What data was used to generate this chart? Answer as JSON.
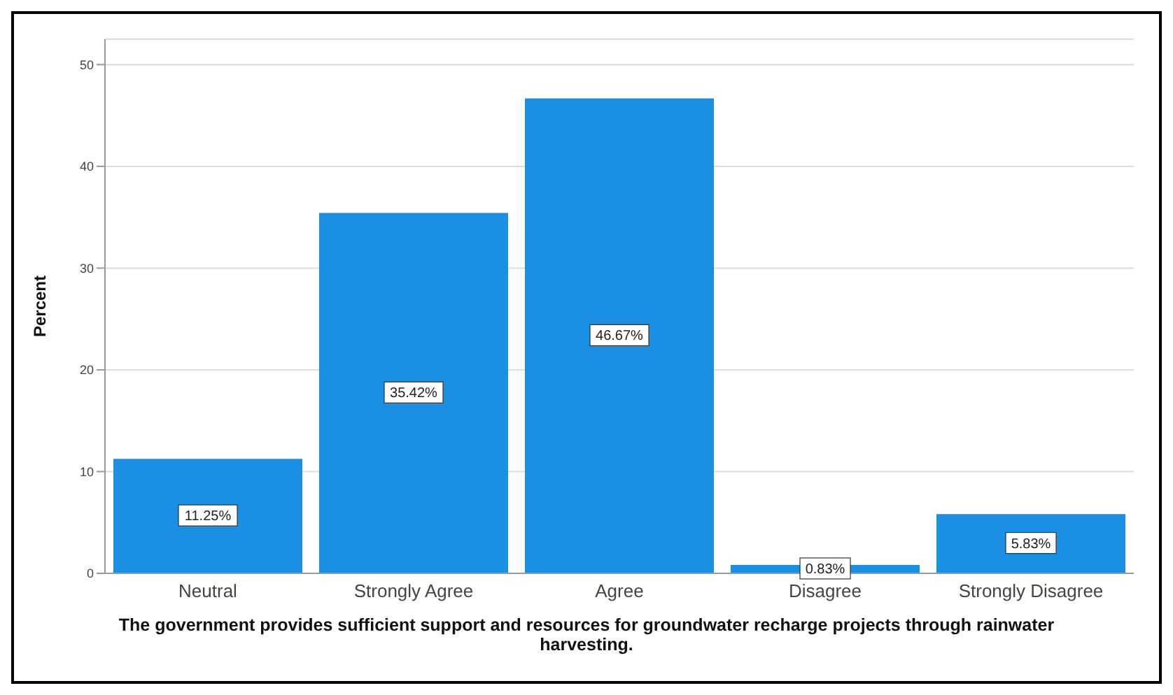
{
  "chart_data": {
    "type": "bar",
    "ylabel": "Percent",
    "xlabel": "The government provides sufficient support and resources for groundwater recharge projects through rainwater harvesting.",
    "categories": [
      "Neutral",
      "Strongly Agree",
      "Agree",
      "Disagree",
      "Strongly Disagree"
    ],
    "values": [
      11.25,
      35.42,
      46.67,
      0.83,
      5.83
    ],
    "value_labels": [
      "11.25%",
      "35.42%",
      "46.67%",
      "0.83%",
      "5.83%"
    ],
    "color": "#1a8fe3",
    "ylim": [
      0,
      52.5
    ],
    "yticks": [
      0,
      10,
      20,
      30,
      40,
      50
    ],
    "grid": "y"
  }
}
